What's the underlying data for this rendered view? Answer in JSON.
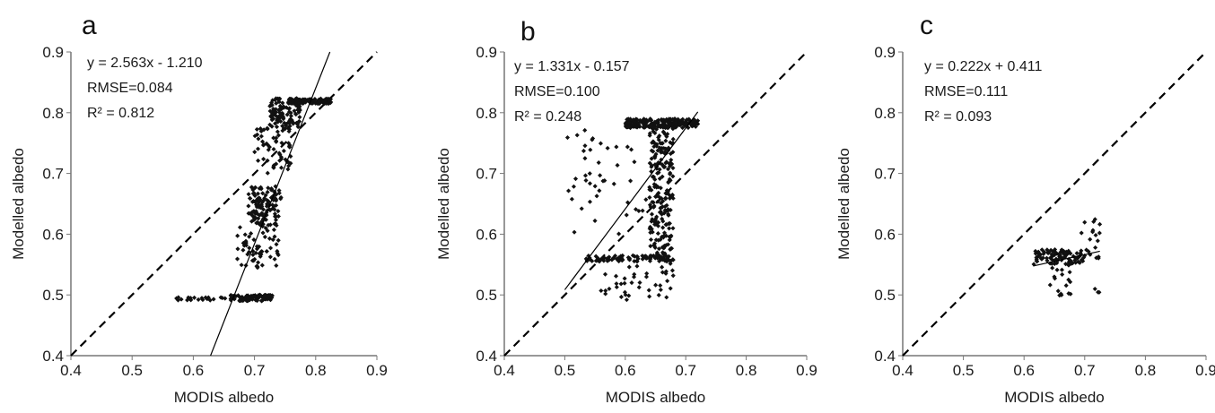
{
  "chart_data": [
    {
      "type": "scatter",
      "panel_label": "a",
      "xlabel": "MODIS albedo",
      "ylabel": "Modelled albedo",
      "xlim": [
        0.4,
        0.9
      ],
      "ylim": [
        0.4,
        0.9
      ],
      "x_ticks": [
        "0.4",
        "0.5",
        "0.6",
        "0.7",
        "0.8",
        "0.9"
      ],
      "y_ticks": [
        "0.4",
        "0.5",
        "0.6",
        "0.7",
        "0.8",
        "0.9"
      ],
      "grid": false,
      "annotations": [
        "y = 2.563x - 1.210",
        "RMSE=0.084",
        "R² = 0.812"
      ],
      "fit_line": {
        "slope": 2.563,
        "intercept": -1.21
      },
      "one_to_one_line": true,
      "clusters": [
        {
          "x": [
            0.755,
            0.825
          ],
          "y": [
            0.815,
            0.823
          ],
          "n": 160
        },
        {
          "x": [
            0.725,
            0.775
          ],
          "y": [
            0.775,
            0.825
          ],
          "n": 110
        },
        {
          "x": [
            0.7,
            0.76
          ],
          "y": [
            0.7,
            0.78
          ],
          "n": 60
        },
        {
          "x": [
            0.69,
            0.745
          ],
          "y": [
            0.655,
            0.68
          ],
          "n": 45
        },
        {
          "x": [
            0.69,
            0.74
          ],
          "y": [
            0.615,
            0.655
          ],
          "n": 80
        },
        {
          "x": [
            0.67,
            0.74
          ],
          "y": [
            0.545,
            0.615
          ],
          "n": 60
        },
        {
          "x": [
            0.66,
            0.73
          ],
          "y": [
            0.49,
            0.5
          ],
          "n": 90
        },
        {
          "x": [
            0.57,
            0.66
          ],
          "y": [
            0.491,
            0.496
          ],
          "n": 22
        }
      ]
    },
    {
      "type": "scatter",
      "panel_label": "b",
      "xlabel": "MODIS albedo",
      "ylabel": "Modelled albedo",
      "xlim": [
        0.4,
        0.9
      ],
      "ylim": [
        0.4,
        0.9
      ],
      "x_ticks": [
        "0.4",
        "0.5",
        "0.6",
        "0.7",
        "0.8",
        "0.9"
      ],
      "y_ticks": [
        "0.4",
        "0.5",
        "0.6",
        "0.7",
        "0.8",
        "0.9"
      ],
      "grid": false,
      "annotations": [
        "y = 1.331x - 0.157",
        "RMSE=0.100",
        "R² = 0.248"
      ],
      "fit_line": {
        "slope": 1.331,
        "intercept": -0.157,
        "x_range": [
          0.5,
          0.72
        ]
      },
      "one_to_one_line": true,
      "clusters": [
        {
          "x": [
            0.6,
            0.72
          ],
          "y": [
            0.775,
            0.79
          ],
          "n": 220
        },
        {
          "x": [
            0.64,
            0.68
          ],
          "y": [
            0.56,
            0.78
          ],
          "n": 220
        },
        {
          "x": [
            0.53,
            0.68
          ],
          "y": [
            0.555,
            0.565
          ],
          "n": 90
        },
        {
          "x": [
            0.5,
            0.64
          ],
          "y": [
            0.6,
            0.78
          ],
          "n": 45
        },
        {
          "x": [
            0.56,
            0.68
          ],
          "y": [
            0.49,
            0.56
          ],
          "n": 45
        }
      ]
    },
    {
      "type": "scatter",
      "panel_label": "c",
      "xlabel": "MODIS albedo",
      "ylabel": "Modelled albedo",
      "xlim": [
        0.4,
        0.9
      ],
      "ylim": [
        0.4,
        0.9
      ],
      "x_ticks": [
        "0.4",
        "0.5",
        "0.6",
        "0.7",
        "0.8",
        "0.9"
      ],
      "y_ticks": [
        "0.4",
        "0.5",
        "0.6",
        "0.7",
        "0.8",
        "0.9"
      ],
      "grid": false,
      "annotations": [
        "y = 0.222x + 0.411",
        "RMSE=0.111",
        "R² = 0.093"
      ],
      "fit_line": {
        "slope": 0.222,
        "intercept": 0.411,
        "x_range": [
          0.615,
          0.725
        ]
      },
      "one_to_one_line": true,
      "clusters": [
        {
          "x": [
            0.615,
            0.7
          ],
          "y": [
            0.55,
            0.575
          ],
          "n": 90
        },
        {
          "x": [
            0.64,
            0.68
          ],
          "y": [
            0.495,
            0.55
          ],
          "n": 18
        },
        {
          "x": [
            0.69,
            0.725
          ],
          "y": [
            0.56,
            0.625
          ],
          "n": 20
        },
        {
          "x": [
            0.715,
            0.725
          ],
          "y": [
            0.503,
            0.51
          ],
          "n": 3
        }
      ]
    }
  ]
}
